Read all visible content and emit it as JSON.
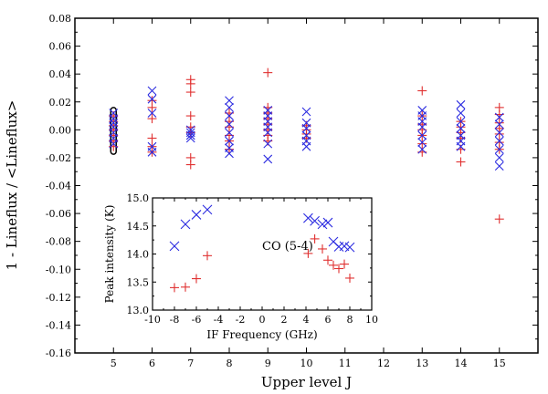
{
  "chart_data": [
    {
      "type": "scatter",
      "title": "",
      "xlabel": "Upper level J",
      "ylabel": "1 - Lineflux / <Lineflux>",
      "xlim": [
        4,
        16
      ],
      "ylim": [
        -0.16,
        0.08
      ],
      "xticks": [
        5,
        6,
        7,
        8,
        9,
        10,
        11,
        12,
        13,
        14,
        15
      ],
      "yticks": [
        0.08,
        0.06,
        0.04,
        0.02,
        0.0,
        -0.02,
        -0.04,
        -0.06,
        -0.08,
        -0.1,
        -0.12,
        -0.14,
        -0.16
      ],
      "ytick_labels": [
        "0.08",
        "0.06",
        "0.04",
        "0.02",
        "0.00",
        "-0.02",
        "-0.04",
        "-0.06",
        "-0.08",
        "-0.10",
        "-0.12",
        "-0.14",
        "-0.16"
      ],
      "highlight_box": {
        "x": [
          4.93,
          5.07
        ],
        "y": [
          -0.0175,
          0.016
        ]
      },
      "series": [
        {
          "marker": "plus",
          "color": "#e03030",
          "points": [
            [
              5,
              0.01
            ],
            [
              5,
              0.006
            ],
            [
              5,
              0.003
            ],
            [
              5,
              0.0
            ],
            [
              5,
              -0.004
            ],
            [
              5,
              -0.008
            ],
            [
              5,
              -0.012
            ],
            [
              6,
              0.021
            ],
            [
              6,
              0.016
            ],
            [
              6,
              0.008
            ],
            [
              6,
              -0.006
            ],
            [
              6,
              -0.012
            ],
            [
              6,
              -0.016
            ],
            [
              7,
              0.036
            ],
            [
              7,
              0.033
            ],
            [
              7,
              0.027
            ],
            [
              7,
              0.01
            ],
            [
              7,
              0.002
            ],
            [
              7,
              -0.002
            ],
            [
              7,
              -0.02
            ],
            [
              7,
              -0.025
            ],
            [
              8,
              0.012
            ],
            [
              8,
              0.006
            ],
            [
              8,
              0.002
            ],
            [
              8,
              -0.004
            ],
            [
              8,
              -0.008
            ],
            [
              8,
              -0.014
            ],
            [
              9,
              0.041
            ],
            [
              9,
              0.016
            ],
            [
              9,
              0.012
            ],
            [
              9,
              0.008
            ],
            [
              9,
              0.004
            ],
            [
              9,
              0.0
            ],
            [
              9,
              -0.004
            ],
            [
              9,
              -0.008
            ],
            [
              10,
              0.003
            ],
            [
              10,
              0.0
            ],
            [
              10,
              -0.003
            ],
            [
              10,
              -0.006
            ],
            [
              13,
              0.028
            ],
            [
              13,
              0.01
            ],
            [
              13,
              0.004
            ],
            [
              13,
              0.0
            ],
            [
              13,
              -0.004
            ],
            [
              13,
              -0.01
            ],
            [
              13,
              -0.016
            ],
            [
              14,
              0.006
            ],
            [
              14,
              0.002
            ],
            [
              14,
              -0.002
            ],
            [
              14,
              -0.006
            ],
            [
              14,
              -0.014
            ],
            [
              14,
              -0.023
            ],
            [
              15,
              0.016
            ],
            [
              15,
              0.011
            ],
            [
              15,
              0.005
            ],
            [
              15,
              0.001
            ],
            [
              15,
              -0.003
            ],
            [
              15,
              -0.009
            ],
            [
              15,
              -0.014
            ],
            [
              15,
              -0.064
            ]
          ]
        },
        {
          "marker": "cross",
          "color": "#2a2ae0",
          "points": [
            [
              5,
              0.012
            ],
            [
              5,
              0.008
            ],
            [
              5,
              0.005
            ],
            [
              5,
              0.002
            ],
            [
              5,
              -0.002
            ],
            [
              5,
              -0.006
            ],
            [
              5,
              -0.01
            ],
            [
              6,
              0.028
            ],
            [
              6,
              0.022
            ],
            [
              6,
              0.012
            ],
            [
              6,
              -0.012
            ],
            [
              6,
              -0.016
            ],
            [
              7,
              0.0
            ],
            [
              7,
              -0.002
            ],
            [
              7,
              -0.004
            ],
            [
              7,
              -0.006
            ],
            [
              8,
              0.021
            ],
            [
              8,
              0.016
            ],
            [
              8,
              0.01
            ],
            [
              8,
              0.004
            ],
            [
              8,
              -0.002
            ],
            [
              8,
              -0.008
            ],
            [
              8,
              -0.013
            ],
            [
              8,
              -0.017
            ],
            [
              9,
              0.014
            ],
            [
              9,
              0.01
            ],
            [
              9,
              0.006
            ],
            [
              9,
              0.002
            ],
            [
              9,
              -0.002
            ],
            [
              9,
              -0.01
            ],
            [
              9,
              -0.021
            ],
            [
              10,
              0.013
            ],
            [
              10,
              0.005
            ],
            [
              10,
              0.001
            ],
            [
              10,
              -0.004
            ],
            [
              10,
              -0.008
            ],
            [
              10,
              -0.012
            ],
            [
              13,
              0.014
            ],
            [
              13,
              0.01
            ],
            [
              13,
              0.006
            ],
            [
              13,
              0.002
            ],
            [
              13,
              -0.004
            ],
            [
              13,
              -0.009
            ],
            [
              13,
              -0.014
            ],
            [
              14,
              0.018
            ],
            [
              14,
              0.012
            ],
            [
              14,
              0.006
            ],
            [
              14,
              0.001
            ],
            [
              14,
              -0.004
            ],
            [
              14,
              -0.008
            ],
            [
              14,
              -0.012
            ],
            [
              15,
              0.009
            ],
            [
              15,
              0.004
            ],
            [
              15,
              -0.002
            ],
            [
              15,
              -0.008
            ],
            [
              15,
              -0.014
            ],
            [
              15,
              -0.02
            ],
            [
              15,
              -0.026
            ]
          ]
        }
      ]
    },
    {
      "type": "scatter",
      "title": "",
      "xlabel": "IF Frequency (GHz)",
      "ylabel": "Peak intensity (K)",
      "annotation": "CO (5-4)",
      "xlim": [
        -10,
        10
      ],
      "ylim": [
        13.0,
        15.0
      ],
      "xticks": [
        -10,
        -8,
        -6,
        -4,
        -2,
        0,
        2,
        4,
        6,
        8,
        10
      ],
      "yticks": [
        13.0,
        13.5,
        14.0,
        14.5,
        15.0
      ],
      "ytick_labels": [
        "13.0",
        "13.5",
        "14.0",
        "14.5",
        "15.0"
      ],
      "series": [
        {
          "marker": "plus",
          "color": "#e03030",
          "points": [
            [
              -8.0,
              13.4
            ],
            [
              -7.0,
              13.41
            ],
            [
              -6.0,
              13.56
            ],
            [
              -5.0,
              13.97
            ],
            [
              4.2,
              14.01
            ],
            [
              4.8,
              14.27
            ],
            [
              5.5,
              14.09
            ],
            [
              6.0,
              13.89
            ],
            [
              6.5,
              13.8
            ],
            [
              7.0,
              13.74
            ],
            [
              7.5,
              13.82
            ],
            [
              8.0,
              13.57
            ]
          ]
        },
        {
          "marker": "cross",
          "color": "#2a2ae0",
          "points": [
            [
              -8.0,
              14.14
            ],
            [
              -7.0,
              14.53
            ],
            [
              -6.0,
              14.7
            ],
            [
              -5.0,
              14.79
            ],
            [
              4.2,
              14.64
            ],
            [
              4.8,
              14.59
            ],
            [
              5.5,
              14.53
            ],
            [
              6.0,
              14.56
            ],
            [
              6.5,
              14.22
            ],
            [
              7.0,
              14.13
            ],
            [
              7.5,
              14.14
            ],
            [
              8.0,
              14.12
            ]
          ]
        }
      ]
    }
  ]
}
